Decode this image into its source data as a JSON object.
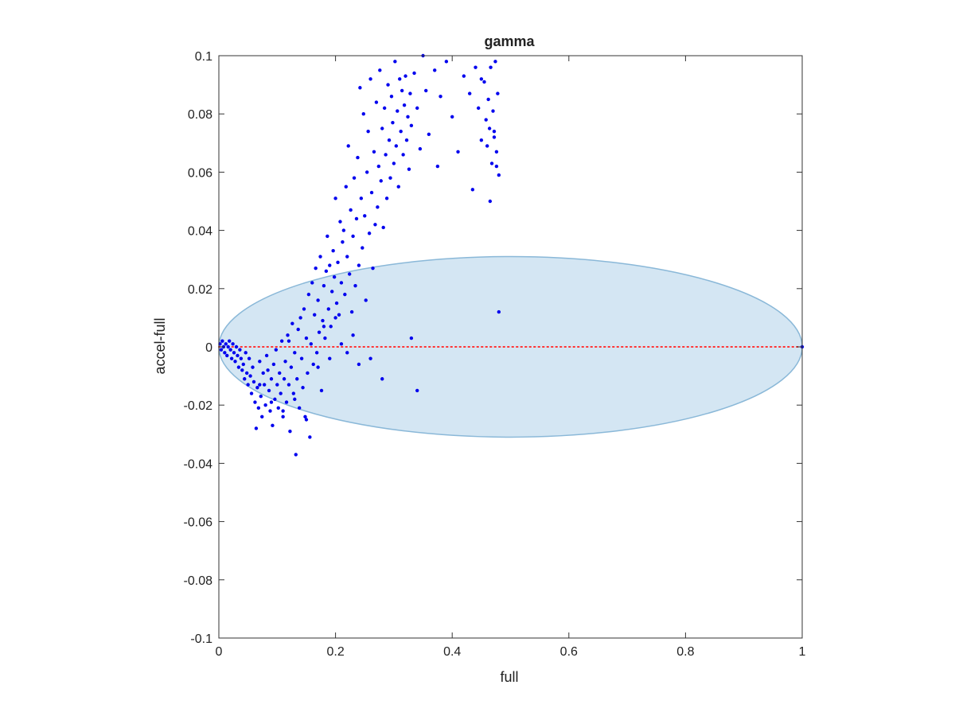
{
  "chart_data": {
    "type": "scatter",
    "title": "gamma",
    "xlabel": "full",
    "ylabel": "accel-full",
    "xlim": [
      0,
      1
    ],
    "ylim": [
      -0.1,
      0.1
    ],
    "xticks": [
      0,
      0.2,
      0.4,
      0.6,
      0.8,
      1
    ],
    "xtick_labels": [
      "0",
      "0.2",
      "0.4",
      "0.6",
      "0.8",
      "1"
    ],
    "yticks": [
      -0.1,
      -0.08,
      -0.06,
      -0.04,
      -0.02,
      0,
      0.02,
      0.04,
      0.06,
      0.08,
      0.1
    ],
    "ytick_labels": [
      "-0.1",
      "-0.08",
      "-0.06",
      "-0.04",
      "-0.02",
      "0",
      "0.02",
      "0.04",
      "0.06",
      "0.08",
      "0.1"
    ],
    "grid": false,
    "legend": "none",
    "colors": {
      "points": "#0000ee",
      "ellipse_fill": "#d4e6f3",
      "ellipse_edge": "#8ab8d8",
      "zero_line": "#ff3333",
      "axes": "#333333"
    },
    "ellipse": {
      "center": [
        0.5,
        0.0
      ],
      "radius_x": 0.5,
      "radius_y": 0.031
    },
    "reference_line": {
      "y": 0,
      "x_from": 0,
      "x_to": 1,
      "style": "dotted"
    },
    "series": [
      {
        "marker": "dot",
        "points": [
          [
            0.002,
            0.001
          ],
          [
            0.004,
            -0.001
          ],
          [
            0.006,
            0.002
          ],
          [
            0.008,
            0.0
          ],
          [
            0.01,
            -0.002
          ],
          [
            0.012,
            0.001
          ],
          [
            0.014,
            -0.003
          ],
          [
            0.016,
            0.0
          ],
          [
            0.018,
            0.002
          ],
          [
            0.02,
            -0.001
          ],
          [
            0.022,
            -0.004
          ],
          [
            0.024,
            0.001
          ],
          [
            0.026,
            -0.002
          ],
          [
            0.028,
            -0.005
          ],
          [
            0.03,
            0.0
          ],
          [
            0.032,
            -0.003
          ],
          [
            0.034,
            -0.007
          ],
          [
            0.036,
            -0.001
          ],
          [
            0.038,
            -0.004
          ],
          [
            0.04,
            -0.008
          ],
          [
            0.042,
            -0.006
          ],
          [
            0.044,
            -0.011
          ],
          [
            0.046,
            -0.002
          ],
          [
            0.048,
            -0.009
          ],
          [
            0.05,
            -0.013
          ],
          [
            0.052,
            -0.004
          ],
          [
            0.054,
            -0.01
          ],
          [
            0.056,
            -0.016
          ],
          [
            0.058,
            -0.007
          ],
          [
            0.06,
            -0.012
          ],
          [
            0.062,
            -0.019
          ],
          [
            0.064,
            -0.028
          ],
          [
            0.066,
            -0.014
          ],
          [
            0.068,
            -0.021
          ],
          [
            0.07,
            -0.005
          ],
          [
            0.072,
            -0.017
          ],
          [
            0.074,
            -0.024
          ],
          [
            0.076,
            -0.009
          ],
          [
            0.078,
            -0.013
          ],
          [
            0.08,
            -0.02
          ],
          [
            0.082,
            -0.003
          ],
          [
            0.084,
            -0.008
          ],
          [
            0.086,
            -0.015
          ],
          [
            0.088,
            -0.022
          ],
          [
            0.09,
            -0.011
          ],
          [
            0.092,
            -0.027
          ],
          [
            0.094,
            -0.006
          ],
          [
            0.096,
            -0.018
          ],
          [
            0.098,
            -0.001
          ],
          [
            0.1,
            -0.013
          ],
          [
            0.102,
            -0.021
          ],
          [
            0.104,
            -0.009
          ],
          [
            0.106,
            -0.016
          ],
          [
            0.108,
            0.002
          ],
          [
            0.11,
            -0.024
          ],
          [
            0.112,
            -0.011
          ],
          [
            0.114,
            -0.005
          ],
          [
            0.116,
            -0.019
          ],
          [
            0.118,
            0.004
          ],
          [
            0.12,
            -0.013
          ],
          [
            0.122,
            -0.029
          ],
          [
            0.124,
            -0.007
          ],
          [
            0.126,
            0.008
          ],
          [
            0.128,
            -0.016
          ],
          [
            0.13,
            -0.002
          ],
          [
            0.132,
            -0.037
          ],
          [
            0.134,
            -0.011
          ],
          [
            0.136,
            0.006
          ],
          [
            0.138,
            -0.021
          ],
          [
            0.14,
            0.01
          ],
          [
            0.142,
            -0.004
          ],
          [
            0.144,
            -0.014
          ],
          [
            0.146,
            0.013
          ],
          [
            0.148,
            -0.024
          ],
          [
            0.15,
            0.003
          ],
          [
            0.152,
            -0.009
          ],
          [
            0.154,
            0.018
          ],
          [
            0.156,
            -0.031
          ],
          [
            0.158,
            0.001
          ],
          [
            0.16,
            0.022
          ],
          [
            0.162,
            -0.006
          ],
          [
            0.164,
            0.011
          ],
          [
            0.166,
            0.027
          ],
          [
            0.168,
            -0.002
          ],
          [
            0.17,
            0.016
          ],
          [
            0.172,
            0.005
          ],
          [
            0.174,
            0.031
          ],
          [
            0.176,
            -0.015
          ],
          [
            0.178,
            0.009
          ],
          [
            0.18,
            0.021
          ],
          [
            0.182,
            0.003
          ],
          [
            0.184,
            0.026
          ],
          [
            0.186,
            0.038
          ],
          [
            0.188,
            0.013
          ],
          [
            0.19,
            0.028
          ],
          [
            0.192,
            0.007
          ],
          [
            0.194,
            0.019
          ],
          [
            0.196,
            0.033
          ],
          [
            0.198,
            0.024
          ],
          [
            0.2,
            0.051
          ],
          [
            0.202,
            0.015
          ],
          [
            0.204,
            0.029
          ],
          [
            0.206,
            0.011
          ],
          [
            0.208,
            0.043
          ],
          [
            0.21,
            0.022
          ],
          [
            0.212,
            0.036
          ],
          [
            0.214,
            0.04
          ],
          [
            0.216,
            0.018
          ],
          [
            0.218,
            0.055
          ],
          [
            0.22,
            0.031
          ],
          [
            0.222,
            0.069
          ],
          [
            0.224,
            0.025
          ],
          [
            0.226,
            0.047
          ],
          [
            0.228,
            0.012
          ],
          [
            0.23,
            0.038
          ],
          [
            0.232,
            0.058
          ],
          [
            0.234,
            0.021
          ],
          [
            0.236,
            0.044
          ],
          [
            0.238,
            0.065
          ],
          [
            0.24,
            0.028
          ],
          [
            0.242,
            0.089
          ],
          [
            0.244,
            0.051
          ],
          [
            0.246,
            0.034
          ],
          [
            0.248,
            0.08
          ],
          [
            0.25,
            0.045
          ],
          [
            0.252,
            0.016
          ],
          [
            0.254,
            0.06
          ],
          [
            0.256,
            0.074
          ],
          [
            0.258,
            0.039
          ],
          [
            0.26,
            0.092
          ],
          [
            0.262,
            0.053
          ],
          [
            0.264,
            0.027
          ],
          [
            0.266,
            0.067
          ],
          [
            0.268,
            0.042
          ],
          [
            0.27,
            0.084
          ],
          [
            0.272,
            0.048
          ],
          [
            0.274,
            0.062
          ],
          [
            0.276,
            0.095
          ],
          [
            0.278,
            0.057
          ],
          [
            0.28,
            0.075
          ],
          [
            0.282,
            0.041
          ],
          [
            0.284,
            0.082
          ],
          [
            0.286,
            0.066
          ],
          [
            0.288,
            0.051
          ],
          [
            0.29,
            0.09
          ],
          [
            0.292,
            0.071
          ],
          [
            0.294,
            0.058
          ],
          [
            0.296,
            0.086
          ],
          [
            0.298,
            0.077
          ],
          [
            0.3,
            0.063
          ],
          [
            0.302,
            0.098
          ],
          [
            0.304,
            0.069
          ],
          [
            0.306,
            0.081
          ],
          [
            0.308,
            0.055
          ],
          [
            0.31,
            0.092
          ],
          [
            0.312,
            0.074
          ],
          [
            0.314,
            0.088
          ],
          [
            0.316,
            0.066
          ],
          [
            0.318,
            0.083
          ],
          [
            0.32,
            0.093
          ],
          [
            0.322,
            0.071
          ],
          [
            0.324,
            0.079
          ],
          [
            0.326,
            0.061
          ],
          [
            0.328,
            0.087
          ],
          [
            0.33,
            0.076
          ],
          [
            0.335,
            0.094
          ],
          [
            0.34,
            0.082
          ],
          [
            0.345,
            0.068
          ],
          [
            0.35,
            0.1
          ],
          [
            0.355,
            0.088
          ],
          [
            0.36,
            0.073
          ],
          [
            0.37,
            0.095
          ],
          [
            0.375,
            0.062
          ],
          [
            0.38,
            0.086
          ],
          [
            0.39,
            0.098
          ],
          [
            0.4,
            0.079
          ],
          [
            0.41,
            0.067
          ],
          [
            0.42,
            0.093
          ],
          [
            0.43,
            0.087
          ],
          [
            0.435,
            0.054
          ],
          [
            0.44,
            0.096
          ],
          [
            0.445,
            0.082
          ],
          [
            0.45,
            0.071
          ],
          [
            0.455,
            0.091
          ],
          [
            0.46,
            0.069
          ],
          [
            0.462,
            0.085
          ],
          [
            0.464,
            0.075
          ],
          [
            0.466,
            0.096
          ],
          [
            0.468,
            0.063
          ],
          [
            0.47,
            0.081
          ],
          [
            0.472,
            0.074
          ],
          [
            0.474,
            0.098
          ],
          [
            0.476,
            0.067
          ],
          [
            0.478,
            0.087
          ],
          [
            0.48,
            0.059
          ],
          [
            0.465,
            0.05
          ],
          [
            0.458,
            0.078
          ],
          [
            0.472,
            0.072
          ],
          [
            0.45,
            0.092
          ],
          [
            0.476,
            0.062
          ],
          [
            0.18,
            0.007
          ],
          [
            0.19,
            -0.004
          ],
          [
            0.2,
            0.01
          ],
          [
            0.21,
            0.001
          ],
          [
            0.22,
            -0.002
          ],
          [
            0.23,
            0.004
          ],
          [
            0.24,
            -0.006
          ],
          [
            0.26,
            -0.004
          ],
          [
            0.28,
            -0.011
          ],
          [
            0.33,
            0.003
          ],
          [
            0.34,
            -0.015
          ],
          [
            0.48,
            0.012
          ],
          [
            1.0,
            0.0
          ],
          [
            0.15,
            -0.025
          ],
          [
            0.11,
            -0.022
          ],
          [
            0.09,
            -0.019
          ],
          [
            0.07,
            -0.013
          ],
          [
            0.13,
            -0.018
          ],
          [
            0.17,
            -0.007
          ],
          [
            0.12,
            0.002
          ]
        ]
      }
    ]
  }
}
